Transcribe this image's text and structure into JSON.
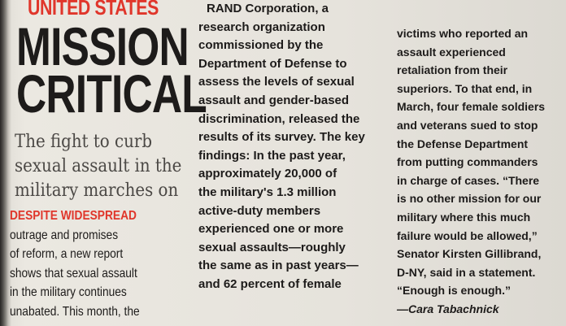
{
  "article": {
    "kicker": "UNITED STATES",
    "headline_line1": "MISSION",
    "headline_line2": "CRITICAL",
    "dek_lines": [
      "The fight to curb",
      "sexual assault in the",
      "military marches on"
    ],
    "lead_in": "DESPITE WIDESPREAD",
    "col1_lines": [
      "outrage and promises",
      "of reform, a new report",
      "shows that sexual assault",
      "in the military continues",
      "unabated. This month, the"
    ],
    "col2_lines": [
      "RAND Corporation, a",
      "research organization",
      "commissioned by the",
      "Department of Defense to",
      "assess the levels of sexual",
      "assault and gender-based",
      "discrimination, released the",
      "results of its survey. The key",
      "findings: In the past year,",
      "approximately 20,000 of",
      "the military's 1.3 million",
      "active-duty members",
      "experienced one or more",
      "sexual assaults—roughly",
      "the same as in past years—",
      "and 62 percent of female"
    ],
    "col3_lines": [
      "victims who reported an",
      "assault experienced",
      "retaliation from their",
      "superiors. To that end, in",
      "March, four female soldiers",
      "and veterans sued to stop",
      "the Defense Department",
      "from putting commanders",
      "in charge of cases. “There",
      "is no other mission for our",
      "military where this much",
      "failure would be allowed,”",
      "Senator Kirsten Gillibrand,",
      "D-NY, said in a statement.",
      "“Enough is enough.”"
    ],
    "byline": "—Cara Tabachnick"
  },
  "colors": {
    "accent_red": "#e0362b",
    "ink": "#1d1b1a",
    "dek_gray": "#4b4845",
    "paper": "#e6e3dc"
  }
}
